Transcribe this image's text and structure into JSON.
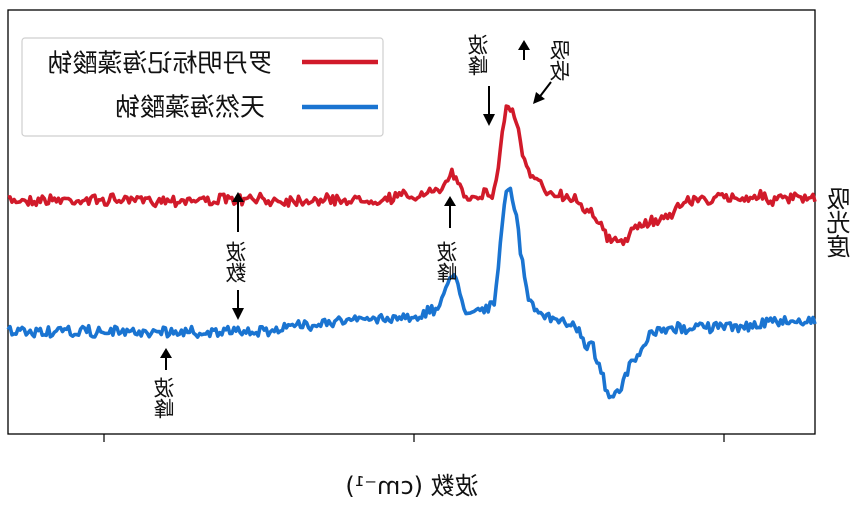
{
  "chart_data": {
    "type": "line",
    "title": "",
    "xlabel": "波数 (cm⁻¹)",
    "ylabel": "吸光度",
    "mirrored_text": true,
    "x_ticks_labeled": false,
    "y_ticks_labeled": false,
    "legend": {
      "placement": "top-left",
      "entries": [
        "罗丹明标记海藻酸钠",
        "天然海藻酸钠"
      ]
    },
    "series": [
      {
        "name": "罗丹明标记海藻酸钠",
        "color": "#d11a2a",
        "x": [
          0,
          5,
          10,
          15,
          20,
          25,
          30,
          35,
          40,
          45,
          50,
          53,
          55,
          57,
          60,
          62,
          65,
          67,
          70,
          72,
          75,
          80,
          85,
          90,
          93,
          95,
          98,
          100
        ],
        "y": [
          0.5,
          0.5,
          0.5,
          0.5,
          0.5,
          0.5,
          0.5,
          0.5,
          0.5,
          0.5,
          0.52,
          0.53,
          0.62,
          0.52,
          0.53,
          0.95,
          0.6,
          0.54,
          0.51,
          0.45,
          0.3,
          0.4,
          0.5,
          0.51,
          0.52,
          0.5,
          0.51,
          0.5
        ]
      },
      {
        "name": "天然海藻酸钠",
        "color": "#1a74d1",
        "x": [
          0,
          5,
          10,
          15,
          20,
          25,
          30,
          35,
          40,
          45,
          50,
          53,
          55,
          57,
          60,
          62,
          65,
          67,
          70,
          72,
          75,
          78,
          80,
          85,
          90,
          93,
          95,
          98,
          100
        ],
        "y": [
          0.0,
          0.0,
          0.0,
          0.0,
          0.0,
          0.0,
          0.0,
          0.02,
          0.04,
          0.05,
          0.06,
          0.08,
          0.22,
          0.08,
          0.1,
          0.55,
          0.1,
          0.05,
          0.03,
          -0.05,
          -0.25,
          -0.1,
          0.0,
          0.02,
          0.02,
          0.03,
          0.04,
          0.04,
          0.05
        ]
      }
    ],
    "annotations": [
      {
        "text": "波峰",
        "target_series": "罗丹明标记海藻酸钠",
        "x": 55,
        "arrow": "down"
      },
      {
        "text": "吸收",
        "target_series": "罗丹明标记海藻酸钠",
        "x": 62,
        "arrow": "down-left"
      },
      {
        "text": "波数",
        "target_series": "both",
        "x": 25,
        "arrow": "up-down"
      },
      {
        "text": "波峰",
        "target_series": "罗丹明标记海藻酸钠",
        "x": 45,
        "arrow": "up"
      },
      {
        "text": "波峰",
        "target_series": "天然海藻酸钠",
        "x": 12,
        "arrow": "up"
      }
    ],
    "grid": false
  }
}
